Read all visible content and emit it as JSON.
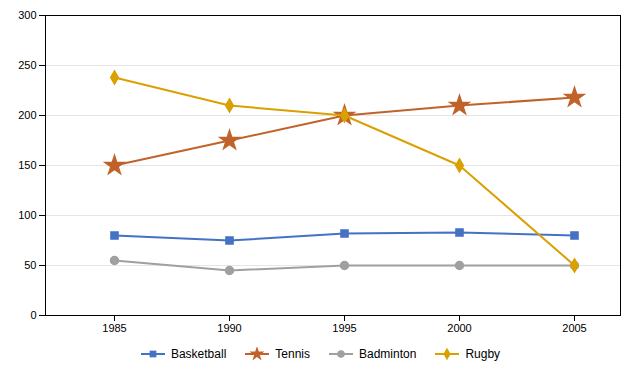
{
  "chart_data": {
    "type": "line",
    "x": [
      1985,
      1990,
      1995,
      2000,
      2005
    ],
    "xlim": [
      1982,
      2007
    ],
    "xticks": [
      1985,
      1990,
      1995,
      2000,
      2005
    ],
    "ylim": [
      0,
      300
    ],
    "yticks": [
      0,
      50,
      100,
      150,
      200,
      250,
      300
    ],
    "grid": true,
    "legend": "bottom",
    "series": [
      {
        "name": "Basketball",
        "color": "#4472C4",
        "marker": "square",
        "values": [
          80,
          75,
          82,
          83,
          80
        ]
      },
      {
        "name": "Tennis",
        "color": "#C0622A",
        "marker": "star",
        "values": [
          150,
          175,
          200,
          210,
          218
        ]
      },
      {
        "name": "Badminton",
        "color": "#A0A0A0",
        "marker": "circle",
        "values": [
          55,
          45,
          50,
          50,
          50
        ]
      },
      {
        "name": "Rugby",
        "color": "#DAA000",
        "marker": "diamond",
        "values": [
          238,
          210,
          200,
          150,
          50
        ]
      }
    ]
  }
}
